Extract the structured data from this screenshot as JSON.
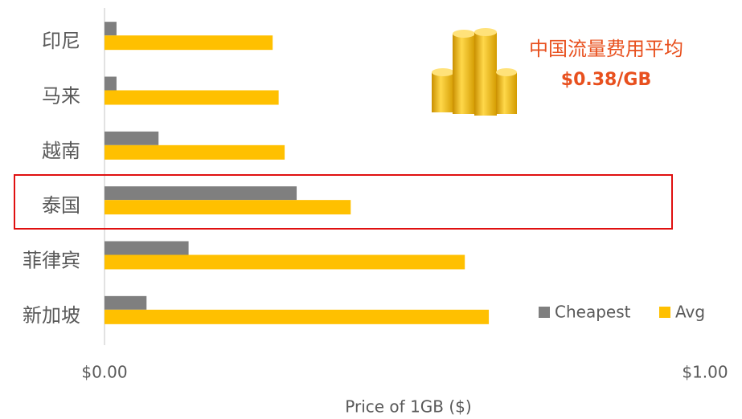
{
  "chart_data": {
    "type": "hbar",
    "categories": [
      "印尼",
      "马来",
      "越南",
      "泰国",
      "菲律宾",
      "新加坡"
    ],
    "series": [
      {
        "name": "Cheapest",
        "color": "#7f7f7f",
        "values": [
          0.02,
          0.02,
          0.09,
          0.32,
          0.14,
          0.07
        ]
      },
      {
        "name": "Avg",
        "color": "#ffc000",
        "values": [
          0.28,
          0.29,
          0.3,
          0.41,
          0.6,
          0.64
        ]
      }
    ],
    "xlim": [
      0,
      1
    ],
    "xticks": [
      {
        "value": 0,
        "label": "$0.00"
      },
      {
        "value": 1,
        "label": "$1.00"
      }
    ],
    "x_label": "Price of 1GB ($)",
    "annotation": {
      "title": "中国流量费用平均",
      "value": "$0.38/GB",
      "color": "#e8501e"
    }
  }
}
